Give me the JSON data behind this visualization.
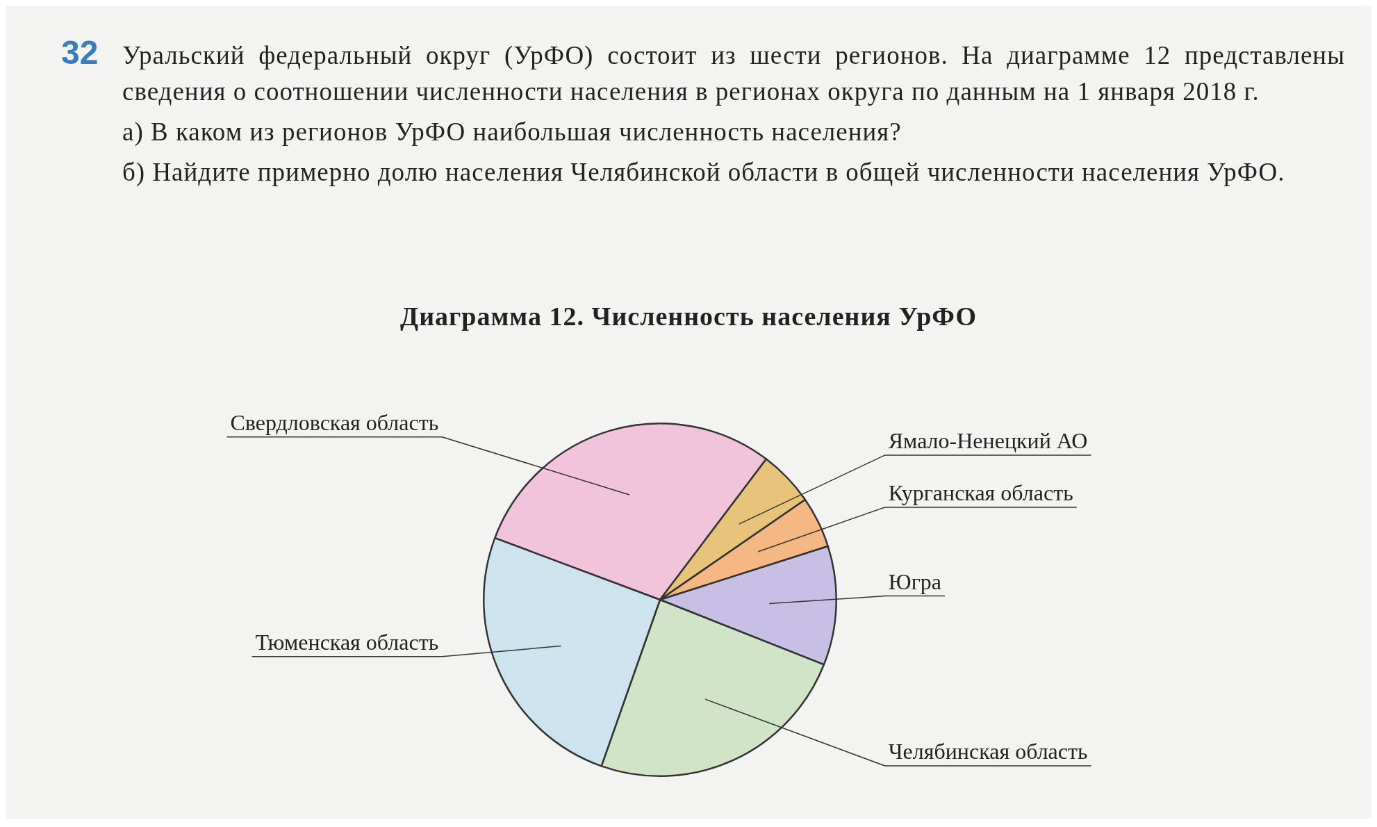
{
  "chart_data": {
    "type": "pie",
    "title": "Диаграмма 12. Численность населения УрФО",
    "categories": [
      "Свердловская область",
      "Ямало-Ненецкий АО",
      "Курганская область",
      "Югра",
      "Челябинская область",
      "Тюменская область"
    ],
    "values": [
      29.6,
      5.1,
      4.7,
      10.9,
      24.4,
      25.3
    ],
    "colors": [
      "#f2c4dc",
      "#e8c47a",
      "#f5b885",
      "#c8c0e4",
      "#d2e4c8",
      "#cde4ee"
    ],
    "annotations": [
      "32",
      "Уральский федеральный округ (УрФО) состоит из шести регионов. На диаграмме 12 представлены сведения о соотношении численности населения в регионах округа по данным на 1 января 2018 г.",
      "а) В каком из регионов УрФО наибольшая численность населения?",
      "б) Найдите примерно долю населения Челябинской области в общей численности населения УрФО."
    ],
    "legend": false,
    "data_labels": false
  }
}
